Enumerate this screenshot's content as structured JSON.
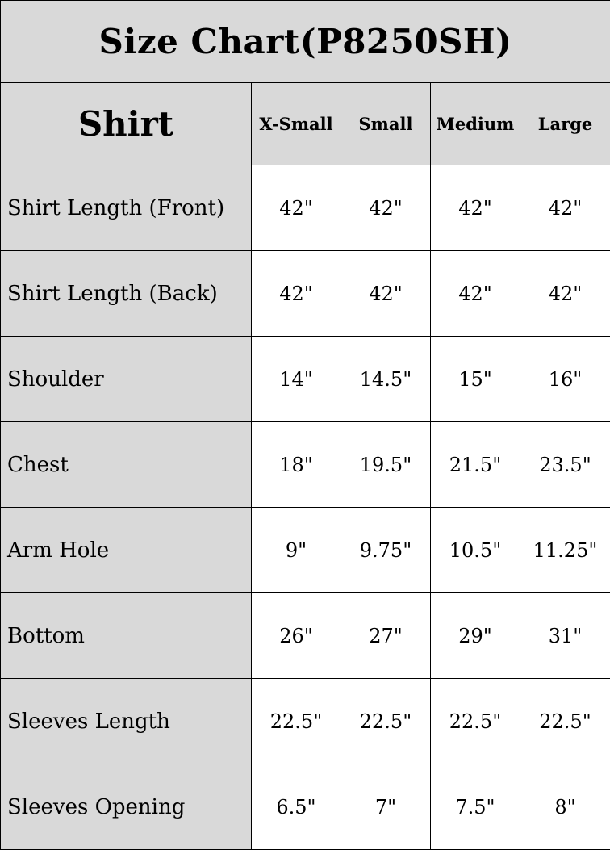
{
  "title": "Size Chart(P8250SH)",
  "header": {
    "section": "Shirt",
    "sizes": [
      "X-Small",
      "Small",
      "Medium",
      "Large"
    ]
  },
  "rows": [
    {
      "label": "Shirt Length (Front)",
      "values": [
        "42\"",
        "42\"",
        "42\"",
        "42\""
      ]
    },
    {
      "label": "Shirt Length (Back)",
      "values": [
        "42\"",
        "42\"",
        "42\"",
        "42\""
      ]
    },
    {
      "label": "Shoulder",
      "values": [
        "14\"",
        "14.5\"",
        "15\"",
        "16\""
      ]
    },
    {
      "label": "Chest",
      "values": [
        "18\"",
        "19.5\"",
        "21.5\"",
        "23.5\""
      ]
    },
    {
      "label": "Arm Hole",
      "values": [
        "9\"",
        "9.75\"",
        "10.5\"",
        "11.25\""
      ]
    },
    {
      "label": "Bottom",
      "values": [
        "26\"",
        "27\"",
        "29\"",
        "31\""
      ]
    },
    {
      "label": "Sleeves Length",
      "values": [
        "22.5\"",
        "22.5\"",
        "22.5\"",
        "22.5\""
      ]
    },
    {
      "label": "Sleeves Opening",
      "values": [
        "6.5\"",
        "7\"",
        "7.5\"",
        "8\""
      ]
    }
  ],
  "colors": {
    "header_bg": "#d9d9d9",
    "cell_bg": "#ffffff",
    "border": "#000000"
  }
}
